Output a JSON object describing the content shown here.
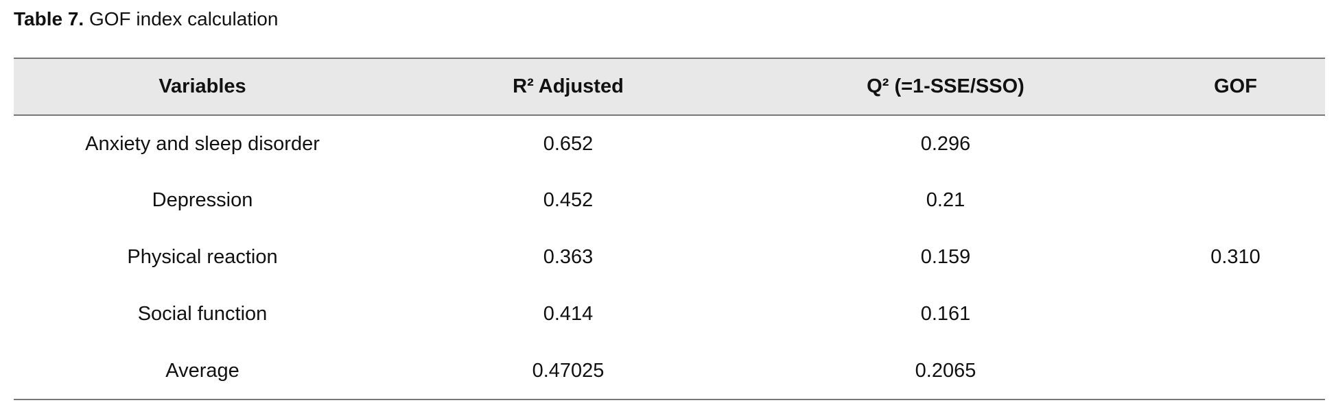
{
  "caption": {
    "label": "Table 7.",
    "title": "GOF index calculation"
  },
  "table": {
    "header": [
      "Variables",
      "R² Adjusted",
      "Q² (=1-SSE/SSO)",
      "GOF"
    ],
    "rows": [
      [
        "Anxiety and sleep disorder",
        "0.652",
        "0.296"
      ],
      [
        "Depression",
        "0.452",
        "0.21"
      ],
      [
        "Physical reaction",
        "0.363",
        "0.159"
      ],
      [
        "Social function",
        "0.414",
        "0.161"
      ],
      [
        "Average",
        "0.47025",
        "0.2065"
      ]
    ],
    "gof": "0.310"
  }
}
